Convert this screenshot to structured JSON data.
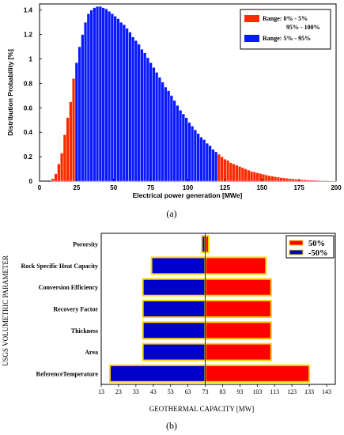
{
  "chart_data": [
    {
      "type": "bar",
      "xlabel": "Electrical power generation [MWe]",
      "ylabel": "Distribution Probability [%]",
      "xlim": [
        0,
        200
      ],
      "ylim": [
        0,
        1.45
      ],
      "xticks": [
        "0",
        "25",
        "50",
        "75",
        "100",
        "125",
        "150",
        "175",
        "200"
      ],
      "yticks": [
        "0",
        "0.2",
        "0.4",
        "0.6",
        "0.8",
        "1",
        "1.2",
        "1.4"
      ],
      "bin_width": 2,
      "legend": [
        {
          "label_line1": "Range:  0% - 5%",
          "label_line2": "95% - 100%",
          "color": "#ff2a00"
        },
        {
          "label_line1": "Range:  5% - 95%",
          "color": "#0a1aff"
        }
      ],
      "colors": {
        "tail": "#ff2a00",
        "center": "#0a1aff"
      },
      "series": [
        {
          "name": "Range:  0% - 5%",
          "color": "#ff2a00",
          "x": [
            9,
            11,
            13,
            15,
            17,
            19,
            21,
            23
          ],
          "values": [
            0.02,
            0.06,
            0.14,
            0.23,
            0.38,
            0.52,
            0.65,
            0.84
          ]
        },
        {
          "name": "Range:  5% - 95%",
          "color": "#0a1aff",
          "x": [
            25,
            27,
            29,
            31,
            33,
            35,
            37,
            39,
            41,
            43,
            45,
            47,
            49,
            51,
            53,
            55,
            57,
            59,
            61,
            63,
            65,
            67,
            69,
            71,
            73,
            75,
            77,
            79,
            81,
            83,
            85,
            87,
            89,
            91,
            93,
            95,
            97,
            99,
            101,
            103,
            105,
            107,
            109,
            111,
            113,
            115,
            117,
            119
          ],
          "values": [
            0.97,
            1.1,
            1.2,
            1.3,
            1.37,
            1.4,
            1.42,
            1.43,
            1.43,
            1.42,
            1.41,
            1.39,
            1.37,
            1.35,
            1.33,
            1.3,
            1.28,
            1.25,
            1.22,
            1.18,
            1.15,
            1.12,
            1.08,
            1.05,
            1.01,
            0.97,
            0.93,
            0.89,
            0.85,
            0.81,
            0.77,
            0.74,
            0.7,
            0.66,
            0.62,
            0.58,
            0.55,
            0.52,
            0.48,
            0.45,
            0.42,
            0.39,
            0.36,
            0.34,
            0.31,
            0.29,
            0.26,
            0.24
          ]
        },
        {
          "name": "95% - 100%",
          "color": "#ff2a00",
          "x": [
            121,
            123,
            125,
            127,
            129,
            131,
            133,
            135,
            137,
            139,
            141,
            143,
            145,
            147,
            149,
            151,
            153,
            155,
            157,
            159,
            161,
            163,
            165,
            167,
            169,
            171,
            173,
            175,
            177,
            179,
            181,
            183,
            185,
            187,
            189,
            191,
            193,
            195,
            197,
            199
          ],
          "values": [
            0.22,
            0.2,
            0.18,
            0.17,
            0.15,
            0.14,
            0.13,
            0.12,
            0.11,
            0.1,
            0.09,
            0.08,
            0.075,
            0.068,
            0.062,
            0.056,
            0.05,
            0.045,
            0.04,
            0.036,
            0.032,
            0.029,
            0.026,
            0.023,
            0.02,
            0.018,
            0.016,
            0.014,
            0.012,
            0.011,
            0.009,
            0.008,
            0.007,
            0.006,
            0.005,
            0.004,
            0.004,
            0.003,
            0.003,
            0.002
          ]
        }
      ]
    },
    {
      "type": "bar",
      "orientation": "horizontal",
      "base": 73,
      "xlabel": "GEOTHERMAL CAPACITY [MW]",
      "ylabel": "USGS VOLUMETRIC PARAMETER",
      "xlim": [
        13,
        148
      ],
      "xticks": [
        "13",
        "23",
        "33",
        "43",
        "53",
        "63",
        "73",
        "83",
        "93",
        "103",
        "113",
        "123",
        "133",
        "143"
      ],
      "categories": [
        "ReferenceTemperature",
        "Area",
        "Thickness",
        "Recovery Factor",
        "Conversion Efficiency",
        "Rock Specific Heat Capacity",
        "Pororsity"
      ],
      "legend": [
        {
          "label": "50%",
          "color": "#ff0000"
        },
        {
          "label": "-50%",
          "color": "#0000cc"
        }
      ],
      "colors": {
        "plus": "#ff0000",
        "minus": "#0000cc",
        "outline": "#ffd700"
      },
      "series": [
        {
          "name": "50%",
          "values": [
            133,
            111,
            111,
            111,
            111,
            108,
            75
          ]
        },
        {
          "name": "-50%",
          "values": [
            18,
            37,
            37,
            37,
            37,
            42,
            71
          ]
        }
      ]
    }
  ],
  "captions": {
    "a": "(a)",
    "b": "(b)"
  }
}
